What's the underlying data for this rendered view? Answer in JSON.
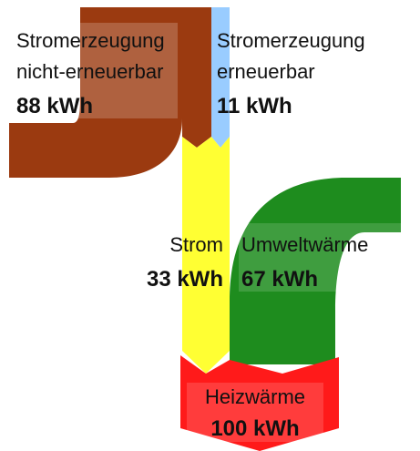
{
  "nodes": [
    {
      "label": "Stromerzeugung",
      "label2": "nicht-erneuerbar",
      "value": "88 kWh"
    },
    {
      "label": "Stromerzeugung",
      "label2": "erneuerbar",
      "value": "11 kWh"
    },
    {
      "label": "Strom",
      "value": "33 kWh"
    },
    {
      "label": "Umweltwärme",
      "value": "67 kWh"
    },
    {
      "label": "Heizwärme",
      "value": "100 kWh"
    }
  ]
}
